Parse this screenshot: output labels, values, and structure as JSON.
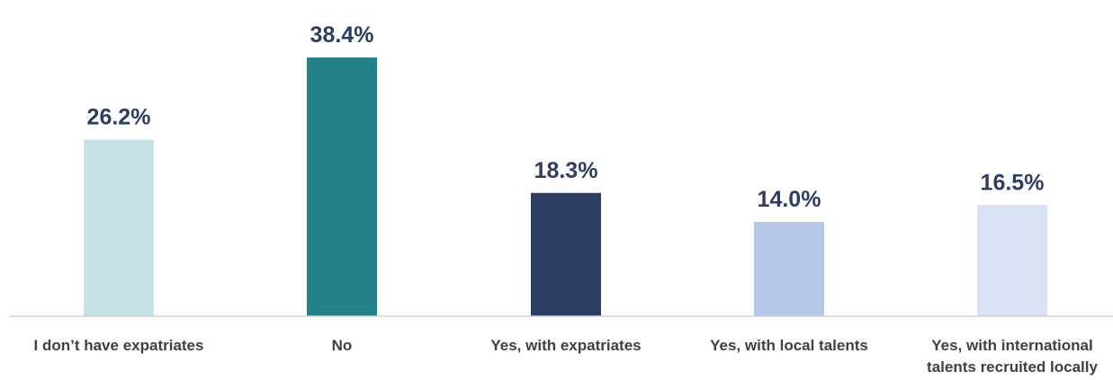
{
  "chart_data": {
    "type": "bar",
    "categories": [
      [
        "I don’t have expatriates"
      ],
      [
        "No"
      ],
      [
        "Yes, with expatriates"
      ],
      [
        "Yes, with local talents"
      ],
      [
        "Yes, with international",
        "talents recruited locally"
      ]
    ],
    "values": [
      26.2,
      38.4,
      18.3,
      14.0,
      16.5
    ],
    "value_labels": [
      "26.2%",
      "38.4%",
      "18.3%",
      "14.0%",
      "16.5%"
    ],
    "bar_colors": [
      "#c5e3e6",
      "#26808a",
      "#2d3e63",
      "#b4c7e6",
      "#d9e2f2"
    ],
    "label_color": "#2d3e63",
    "axis_color": "#d0d0d0",
    "ylim": [
      0,
      40
    ],
    "grid": false,
    "legend": "none"
  }
}
